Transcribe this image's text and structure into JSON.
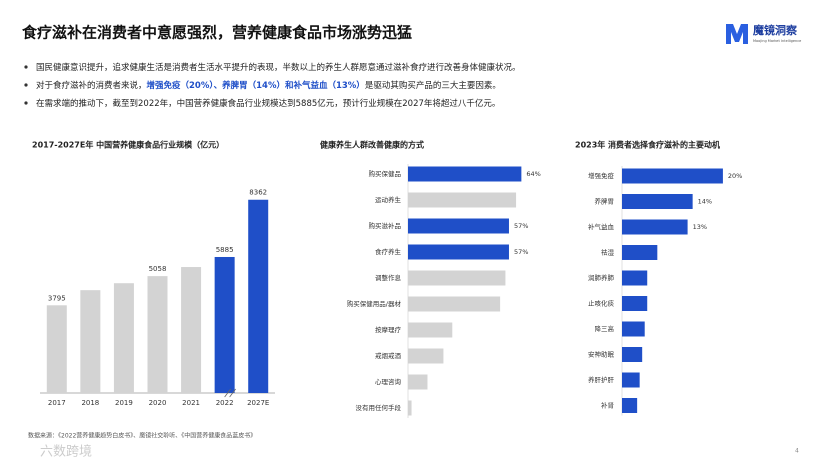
{
  "header": {
    "title": "食疗滋补在消费者中意愿强烈，营养健康食品市场涨势迅猛",
    "logo": "魔镜洞察",
    "logo_sub": "Moojing Market Intelligence"
  },
  "bullets": [
    [
      "国民健康意识提升，追求健康生活是消费者生活水平提升的表现，半数以上的养生人群愿意通过滋补食疗进行改善身体健康状况。"
    ],
    [
      "对于食疗滋补的消费者来说，",
      "增强免疫（20%）、养脾胃（14%）和补气益血（13%）",
      "是驱动其购买产品的三大主要因素。"
    ],
    [
      "在需求端的推动下，截至到2022年，中国营养健康食品行业规模达到5885亿元，预计行业规模在2027年将超过八千亿元。"
    ]
  ],
  "chart_data": [
    {
      "type": "bar",
      "title": "2017-2027E年 中国营养健康食品行业规模（亿元）",
      "categories": [
        "2017",
        "2018",
        "2019",
        "2020",
        "2021",
        "2022",
        "2027E"
      ],
      "values": [
        3795,
        4450,
        4750,
        5058,
        5450,
        5885,
        8362
      ],
      "value_labels": [
        "3795",
        null,
        null,
        "5058",
        null,
        "5885",
        "8362"
      ],
      "colors": [
        "#d3d3d3",
        "#d3d3d3",
        "#d3d3d3",
        "#d3d3d3",
        "#d3d3d3",
        "#1f4fc8",
        "#1f4fc8"
      ],
      "ylim": [
        0,
        9000
      ]
    },
    {
      "type": "barh",
      "title": "健康养生人群改善健康的方式",
      "categories": [
        "购买保健品",
        "运动养生",
        "购买滋补品",
        "食疗养生",
        "调整作息",
        "购买保健用品/器材",
        "按摩理疗",
        "戒烟戒酒",
        "心理咨询",
        "没有用任何手段"
      ],
      "values": [
        64,
        61,
        57,
        57,
        55,
        52,
        25,
        20,
        11,
        2
      ],
      "value_labels": [
        "64%",
        null,
        "57%",
        "57%",
        null,
        null,
        null,
        null,
        null,
        null
      ],
      "colors": [
        "#1f4fc8",
        "#d3d3d3",
        "#1f4fc8",
        "#1f4fc8",
        "#d3d3d3",
        "#d3d3d3",
        "#d3d3d3",
        "#d3d3d3",
        "#d3d3d3",
        "#d3d3d3"
      ],
      "xlim": [
        0,
        70
      ]
    },
    {
      "type": "barh",
      "title": "2023年 消费者选择食疗滋补的主要动机",
      "categories": [
        "增强免疫",
        "养脾胃",
        "补气益血",
        "祛湿",
        "润肺养肺",
        "止咳化痰",
        "降三高",
        "安神助眠",
        "养肝护肝",
        "补肾"
      ],
      "values": [
        20,
        14,
        13,
        7,
        5,
        5,
        4.5,
        4,
        3.5,
        3
      ],
      "value_labels": [
        "20%",
        "14%",
        "13%",
        null,
        null,
        null,
        null,
        null,
        null,
        null
      ],
      "colors": [
        "#1f4fc8",
        "#1f4fc8",
        "#1f4fc8",
        "#1f4fc8",
        "#1f4fc8",
        "#1f4fc8",
        "#1f4fc8",
        "#1f4fc8",
        "#1f4fc8",
        "#1f4fc8"
      ],
      "xlim": [
        0,
        22
      ]
    }
  ],
  "source": "数据来源：《2022营养健康趋势白皮书》、魔镜社交聆听、《中国营养健康食品蓝皮书》",
  "page_number": "4",
  "watermark": "六数跨境"
}
